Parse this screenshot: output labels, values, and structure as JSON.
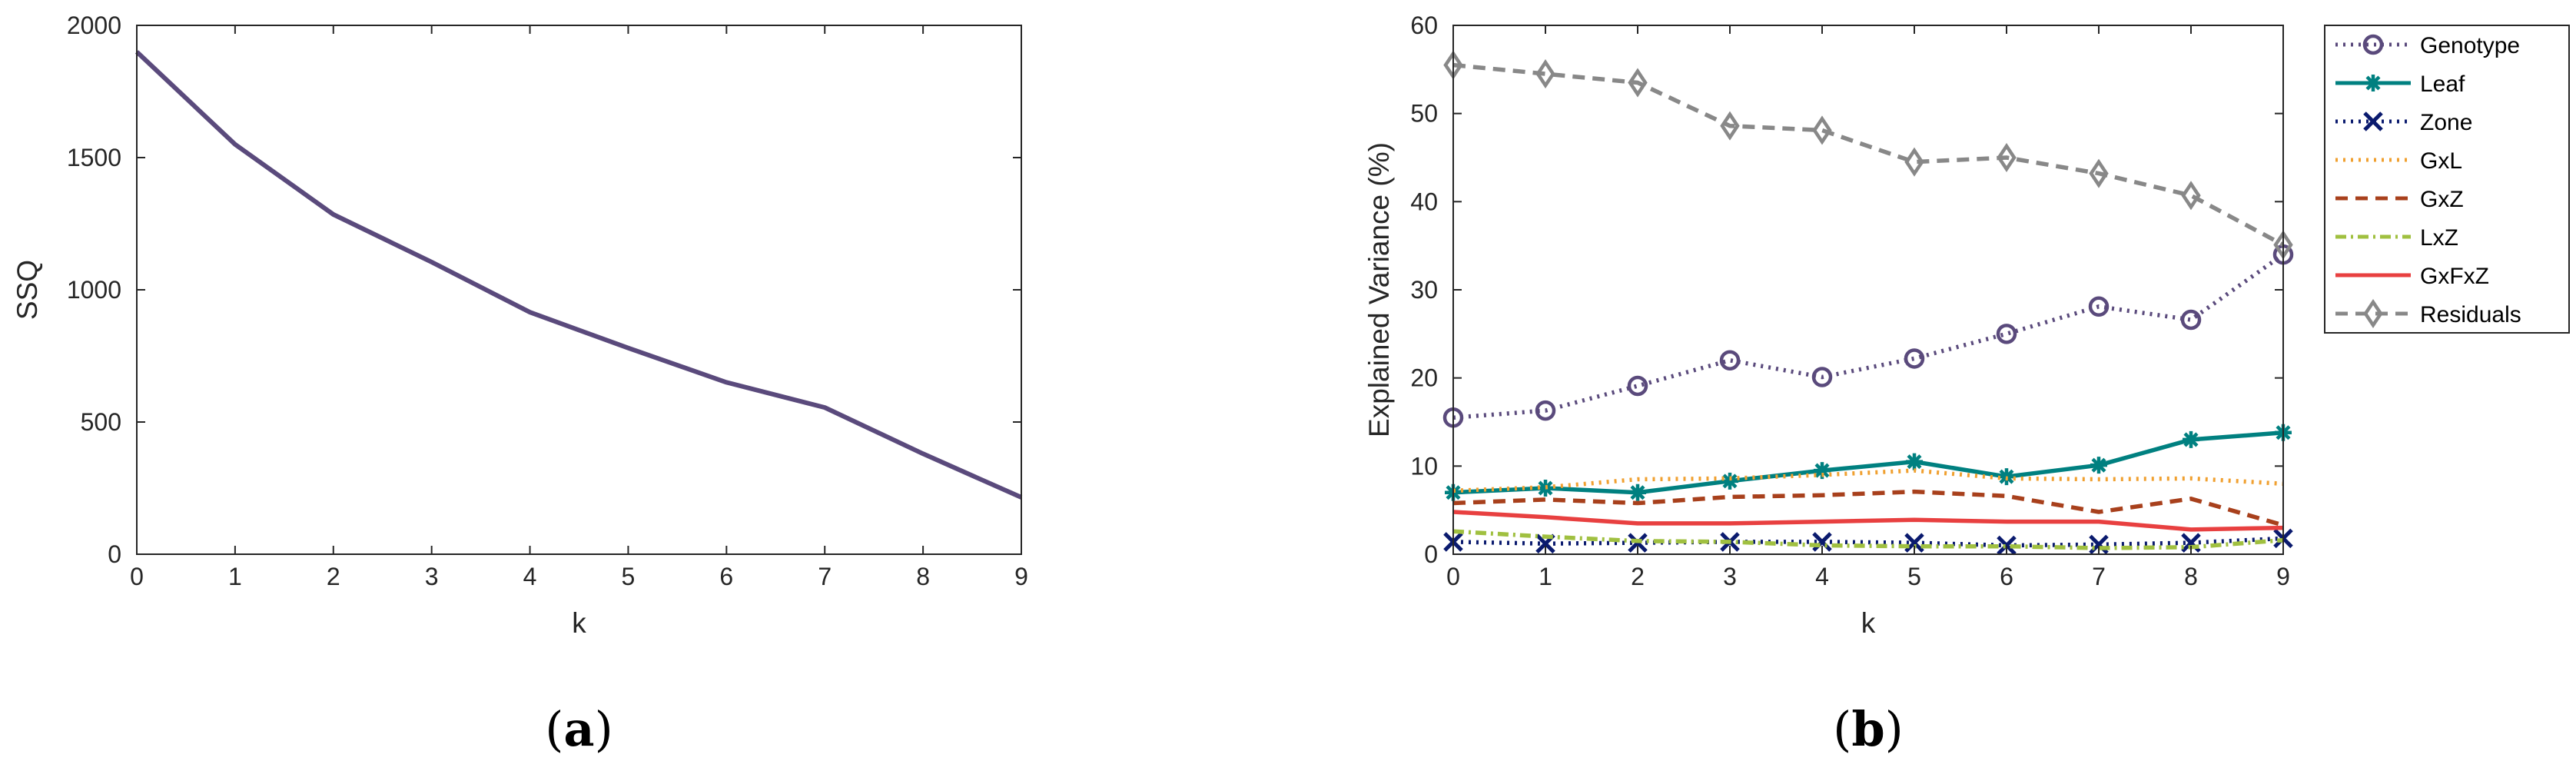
{
  "chart_data": [
    {
      "type": "line",
      "panel_label": {
        "open": "(",
        "letter": "a",
        "close": ")"
      },
      "title": "",
      "xlabel": "k",
      "ylabel": "SSQ",
      "xlim": [
        0,
        9
      ],
      "ylim": [
        0,
        2000
      ],
      "xticks": [
        0,
        1,
        2,
        3,
        4,
        5,
        6,
        7,
        8,
        9
      ],
      "yticks": [
        0,
        500,
        1000,
        1500,
        2000
      ],
      "grid": false,
      "series": [
        {
          "name": "SSQ",
          "color": "#5a4a7c",
          "x": [
            0,
            1,
            2,
            3,
            4,
            5,
            6,
            7,
            8,
            9
          ],
          "values": [
            1900,
            1550,
            1285,
            1105,
            915,
            780,
            650,
            555,
            380,
            215
          ]
        }
      ]
    },
    {
      "type": "line",
      "panel_label": {
        "open": "(",
        "letter": "b",
        "close": ")"
      },
      "title": "",
      "xlabel": "k",
      "ylabel": "Explained Variance (%)",
      "xlim": [
        0,
        9
      ],
      "ylim": [
        0,
        60
      ],
      "xticks": [
        0,
        1,
        2,
        3,
        4,
        5,
        6,
        7,
        8,
        9
      ],
      "yticks": [
        0,
        10,
        20,
        30,
        40,
        50,
        60
      ],
      "grid": false,
      "legend_position": "top-right",
      "series": [
        {
          "name": "Genotype",
          "color": "#5a4a7c",
          "dash": "dot",
          "marker": "circle",
          "x": [
            0,
            1,
            2,
            3,
            4,
            5,
            6,
            7,
            8,
            9
          ],
          "values": [
            15.5,
            16.3,
            19.1,
            22.0,
            20.1,
            22.2,
            25.0,
            28.1,
            26.6,
            34.0
          ]
        },
        {
          "name": "Leaf",
          "color": "#008080",
          "dash": "solid",
          "marker": "asterisk",
          "x": [
            0,
            1,
            2,
            3,
            4,
            5,
            6,
            7,
            8,
            9
          ],
          "values": [
            7.0,
            7.5,
            7.0,
            8.3,
            9.5,
            10.5,
            8.8,
            10.1,
            13.0,
            13.8
          ]
        },
        {
          "name": "Zone",
          "color": "#0a1a6e",
          "dash": "dot",
          "marker": "x",
          "x": [
            0,
            1,
            2,
            3,
            4,
            5,
            6,
            7,
            8,
            9
          ],
          "values": [
            1.4,
            1.2,
            1.3,
            1.4,
            1.4,
            1.3,
            1.0,
            1.1,
            1.3,
            1.8
          ]
        },
        {
          "name": "GxL",
          "color": "#f0a030",
          "dash": "dot",
          "marker": "none",
          "x": [
            0,
            1,
            2,
            3,
            4,
            5,
            6,
            7,
            8,
            9
          ],
          "values": [
            7.2,
            7.6,
            8.5,
            8.6,
            9.0,
            9.5,
            8.6,
            8.5,
            8.6,
            8.0
          ]
        },
        {
          "name": "GxZ",
          "color": "#a8401c",
          "dash": "dash",
          "marker": "none",
          "x": [
            0,
            1,
            2,
            3,
            4,
            5,
            6,
            7,
            8,
            9
          ],
          "values": [
            5.8,
            6.2,
            5.8,
            6.5,
            6.7,
            7.1,
            6.6,
            4.8,
            6.3,
            3.3
          ]
        },
        {
          "name": "LxZ",
          "color": "#a0c040",
          "dash": "dashdot",
          "marker": "none",
          "x": [
            0,
            1,
            2,
            3,
            4,
            5,
            6,
            7,
            8,
            9
          ],
          "values": [
            2.6,
            2.0,
            1.5,
            1.4,
            1.0,
            0.9,
            0.9,
            0.7,
            0.8,
            1.6
          ]
        },
        {
          "name": "GxFxZ",
          "color": "#e84040",
          "dash": "solid",
          "marker": "none",
          "x": [
            0,
            1,
            2,
            3,
            4,
            5,
            6,
            7,
            8,
            9
          ],
          "values": [
            4.8,
            4.2,
            3.5,
            3.5,
            3.7,
            3.9,
            3.7,
            3.7,
            2.8,
            3.0
          ]
        },
        {
          "name": "Residuals",
          "color": "#888888",
          "dash": "dash",
          "marker": "diamond",
          "x": [
            0,
            1,
            2,
            3,
            4,
            5,
            6,
            7,
            8,
            9
          ],
          "values": [
            55.5,
            54.5,
            53.5,
            48.6,
            48.1,
            44.5,
            45.0,
            43.2,
            40.7,
            35.1
          ]
        }
      ]
    }
  ]
}
